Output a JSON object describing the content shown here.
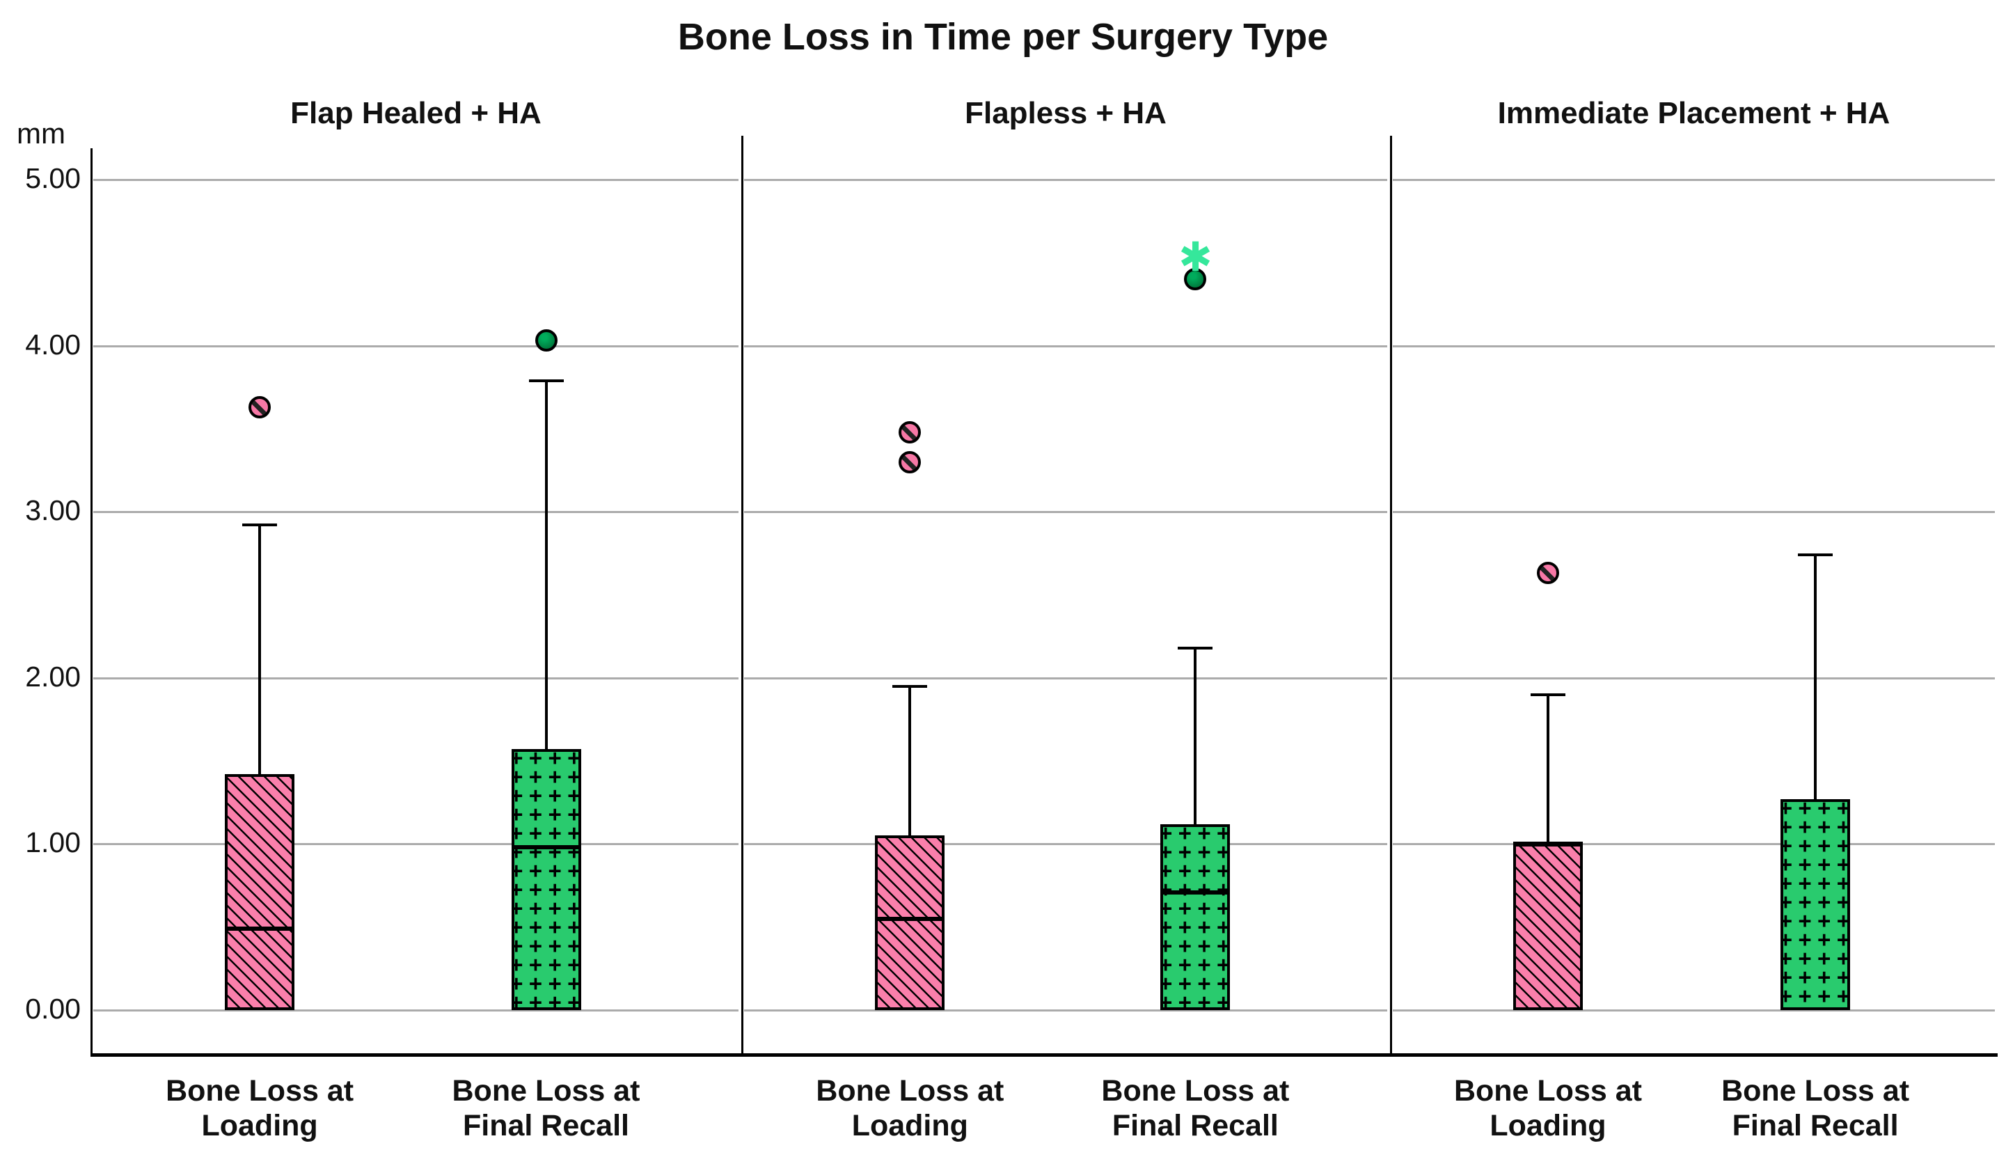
{
  "title": "Bone Loss in Time per Surgery Type",
  "chart_data": {
    "type": "boxplot",
    "title": "Bone Loss in Time per Surgery Type",
    "y_axis": {
      "label": "mm",
      "min": 0,
      "max": 5,
      "tick_labels": [
        "5.00",
        "4.00",
        "3.00",
        "2.00",
        "1.00",
        "0.00"
      ],
      "tick_values": [
        5,
        4,
        3,
        2,
        1,
        0
      ],
      "grid": true,
      "gridline_color": "#ABABAB"
    },
    "legend": "none",
    "series_styles": {
      "loading": {
        "fill": "#FA7FAB",
        "hatch": "diagonal-down",
        "hatch_color": "#000000",
        "outlier_marker": "hatched-pink-circle"
      },
      "final_recall": {
        "fill": "#29CB6E",
        "hatch": "plus-grid",
        "hatch_color": "#000000",
        "outlier_marker": "dark-green-circle",
        "extreme_marker": "green-asterisk"
      }
    },
    "colors": {
      "outlier_pink": "#F778A6",
      "outlier_dark_green": "#007A3D",
      "outlier_dark_green_highlight": "#00AC5C",
      "extreme_green": "#35E79B",
      "axis": "#000000",
      "gridline": "#ABABAB"
    },
    "panels": [
      {
        "title": "Flap Healed + HA",
        "boxes": [
          {
            "series": "loading",
            "label_lines": [
              "Bone Loss at",
              "Loading"
            ],
            "q1": 0.0,
            "median": 0.49,
            "q3": 1.42,
            "whisker_low": 0.0,
            "whisker_high": 2.92,
            "outliers": [
              3.63
            ],
            "extremes": []
          },
          {
            "series": "final_recall",
            "label_lines": [
              "Bone Loss at",
              "Final Recall"
            ],
            "q1": 0.0,
            "median": 0.98,
            "q3": 1.57,
            "whisker_low": 0.0,
            "whisker_high": 3.79,
            "outliers": [
              4.03
            ],
            "extremes": []
          }
        ]
      },
      {
        "title": "Flapless + HA",
        "boxes": [
          {
            "series": "loading",
            "label_lines": [
              "Bone Loss at",
              "Loading"
            ],
            "q1": 0.0,
            "median": 0.55,
            "q3": 1.05,
            "whisker_low": 0.0,
            "whisker_high": 1.95,
            "outliers": [
              3.48,
              3.3
            ],
            "extremes": []
          },
          {
            "series": "final_recall",
            "label_lines": [
              "Bone Loss at",
              "Final Recall"
            ],
            "q1": 0.0,
            "median": 0.71,
            "q3": 1.12,
            "whisker_low": 0.0,
            "whisker_high": 2.18,
            "outliers": [
              4.4
            ],
            "extremes": [
              4.52
            ]
          }
        ]
      },
      {
        "title": "Immediate Placement + HA",
        "boxes": [
          {
            "series": "loading",
            "label_lines": [
              "Bone Loss at",
              "Loading"
            ],
            "q1": 0.0,
            "median": 1.0,
            "q3": 1.0,
            "whisker_low": 0.0,
            "whisker_high": 1.9,
            "outliers": [
              2.63
            ],
            "extremes": []
          },
          {
            "series": "final_recall",
            "label_lines": [
              "Bone Loss at",
              "Final Recall"
            ],
            "q1": 0.0,
            "median": null,
            "q3": 1.27,
            "whisker_low": 0.0,
            "whisker_high": 2.74,
            "outliers": [],
            "extremes": []
          }
        ]
      }
    ]
  }
}
